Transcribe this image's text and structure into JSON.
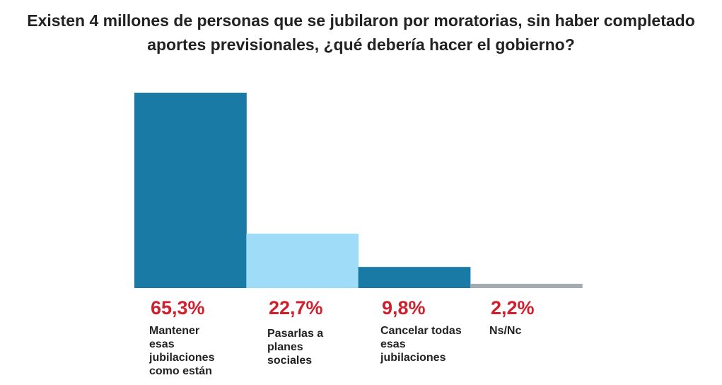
{
  "chart_data": {
    "type": "bar",
    "title": "Existen 4 millones de personas que se jubilaron por moratorias, sin haber completado aportes previsionales, ¿qué debería hacer el gobierno?",
    "categories": [
      "Mantener esas jubilaciones como están",
      "Pasarlas a planes sociales",
      "Cancelar todas esas jubilaciones",
      "Ns/Nc"
    ],
    "values": [
      65.3,
      22.7,
      9.8,
      2.2
    ],
    "data_labels": [
      "65,3%",
      "22,7%",
      "9,8%",
      "2,2%"
    ],
    "colors": [
      "#1a7aa6",
      "#9edcf7",
      "#1a7aa6",
      "#a3acb3"
    ],
    "label_color": "#d0202e",
    "grid": false,
    "xlabel": "",
    "ylabel": ""
  }
}
